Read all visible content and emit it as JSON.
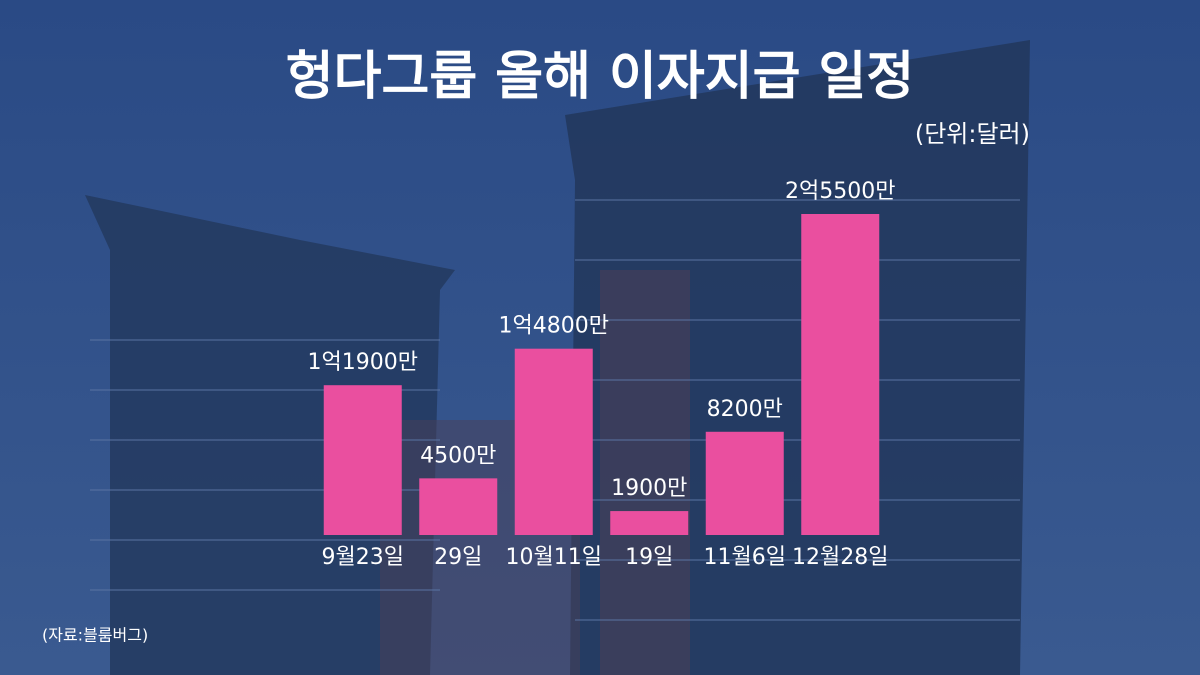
{
  "chart_data": {
    "type": "bar",
    "title": "헝다그룹 올해 이자지급 일정",
    "subtitle": "(단위:달러)",
    "source": "(자료:블룸버그)",
    "categories": [
      "9월23일",
      "29일",
      "10월11일",
      "19일",
      "11월6일",
      "12월28일"
    ],
    "values": [
      119000000,
      45000000,
      148000000,
      19000000,
      82000000,
      255000000
    ],
    "value_labels": [
      "1억1900만",
      "4500만",
      "1억4800만",
      "1900만",
      "8200만",
      "2억5500만"
    ],
    "color": "#ea4f9f"
  }
}
